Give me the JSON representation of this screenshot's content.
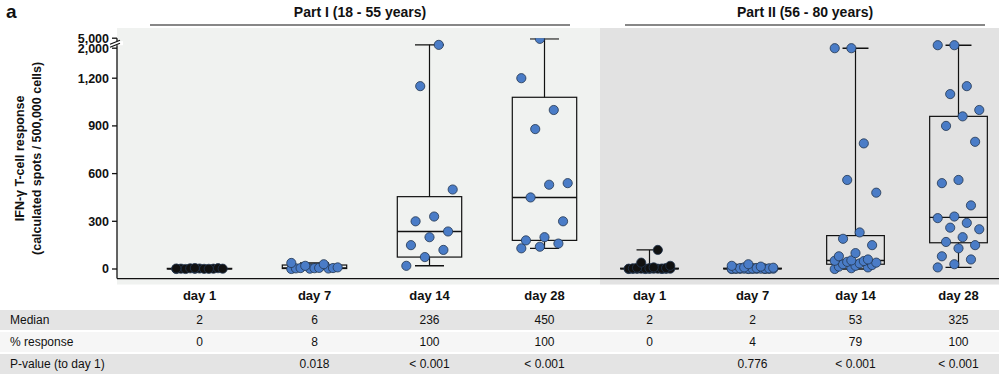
{
  "chart_data": {
    "type": "box",
    "panel_label": "a",
    "y_label": [
      "IFN-γ T-cell response",
      "(calculated spots / 500,000 cells)"
    ],
    "ylim": [
      -60,
      5000
    ],
    "yticks": [
      0,
      300,
      600,
      900,
      {
        "value": 1200,
        "label": "1,200"
      },
      {
        "value": 2000,
        "label": "2,000"
      },
      {
        "value": 5000,
        "label": "5,000"
      }
    ],
    "grid": false,
    "table_rows": [
      "Median",
      "% response",
      "P-value (to day 1)"
    ],
    "groups": [
      {
        "title": "Part I (18 - 55 years)",
        "categories": [
          "day 1",
          "day 7",
          "day 14",
          "day 28"
        ],
        "boxes": [
          {
            "color": "#111111",
            "median": 2,
            "q1": 0,
            "q3": 4,
            "whisker_low": 0,
            "whisker_high": 8,
            "points": [
              0,
              1,
              2,
              2,
              3,
              5,
              0,
              1,
              2,
              4,
              1,
              3,
              6
            ]
          },
          {
            "color": "#4a7cc7",
            "median": 6,
            "q1": 3,
            "q3": 25,
            "whisker_low": 0,
            "whisker_high": 38,
            "points": [
              0,
              2,
              3,
              4,
              5,
              6,
              6,
              7,
              10,
              20,
              30,
              38
            ]
          },
          {
            "color": "#4a7cc7",
            "median": 236,
            "q1": 75,
            "q3": 455,
            "whisker_low": 20,
            "whisker_high": 3000,
            "points": [
              20,
              75,
              120,
              150,
              200,
              236,
              300,
              330,
              500,
              1150,
              3000
            ]
          },
          {
            "color": "#4a7cc7",
            "median": 450,
            "q1": 180,
            "q3": 1080,
            "whisker_low": 130,
            "whisker_high": 4800,
            "points": [
              130,
              140,
              160,
              180,
              200,
              300,
              450,
              530,
              540,
              880,
              1000,
              1200,
              4800
            ]
          }
        ],
        "percent_response": [
          0,
          8,
          100,
          100
        ],
        "p_values": [
          null,
          "0.018",
          "< 0.001",
          "< 0.001"
        ]
      },
      {
        "title": "Part II (56 - 80 years)",
        "categories": [
          "day 1",
          "day 7",
          "day 14",
          "day 28"
        ],
        "boxes": [
          {
            "color": "#111111",
            "median": 2,
            "q1": 1,
            "q3": 5,
            "whisker_low": 0,
            "whisker_high": 120,
            "points": [
              0,
              0,
              0,
              1,
              1,
              1,
              1,
              2,
              2,
              2,
              2,
              2,
              3,
              3,
              4,
              5,
              6,
              8,
              10,
              20,
              40,
              120
            ]
          },
          {
            "color": "#4a7cc7",
            "median": 2,
            "q1": 1,
            "q3": 5,
            "whisker_low": 0,
            "whisker_high": 30,
            "points": [
              0,
              0,
              0,
              1,
              1,
              1,
              1,
              1,
              2,
              2,
              2,
              2,
              2,
              2,
              3,
              3,
              4,
              5,
              6,
              8,
              10,
              15,
              20,
              30
            ]
          },
          {
            "color": "#4a7cc7",
            "median": 53,
            "q1": 30,
            "q3": 210,
            "whisker_low": 0,
            "whisker_high": 2000,
            "points": [
              0,
              5,
              10,
              15,
              20,
              25,
              30,
              35,
              40,
              45,
              50,
              52,
              54,
              60,
              80,
              100,
              150,
              190,
              230,
              480,
              560,
              790,
              2000,
              2000
            ]
          },
          {
            "color": "#4a7cc7",
            "median": 325,
            "q1": 165,
            "q3": 960,
            "whisker_low": 10,
            "whisker_high": 2900,
            "points": [
              10,
              30,
              60,
              80,
              130,
              150,
              170,
              200,
              250,
              260,
              290,
              320,
              330,
              400,
              540,
              560,
              800,
              900,
              960,
              1000,
              1100,
              1150,
              2900,
              2900
            ]
          }
        ],
        "percent_response": [
          0,
          4,
          79,
          100
        ],
        "p_values": [
          null,
          "0.776",
          "< 0.001",
          "< 0.001"
        ]
      }
    ]
  }
}
